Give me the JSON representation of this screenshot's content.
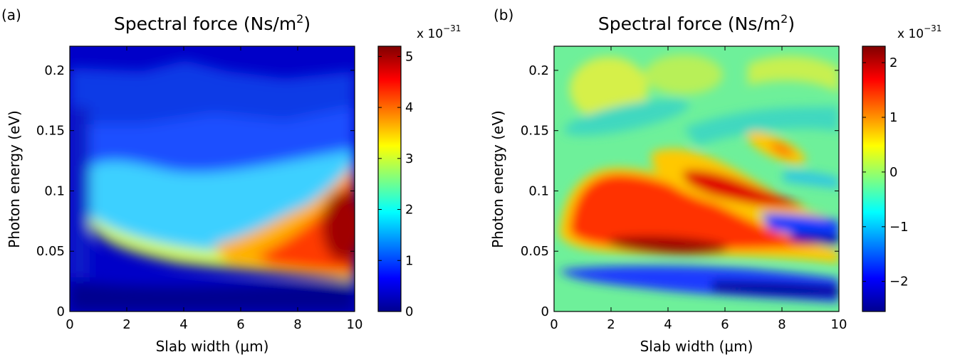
{
  "chart_data": [
    {
      "type": "heatmap",
      "panel_label": "(a)",
      "title": "Spectral force (Ns/m",
      "title_sup": "2",
      "title_tail": ")",
      "xlabel": "Slab width (μm)",
      "ylabel": "Photon energy (eV)",
      "xlim": [
        0,
        10
      ],
      "ylim": [
        0,
        0.22
      ],
      "x_ticks": [
        0,
        2,
        4,
        6,
        8,
        10
      ],
      "x_tick_labels": [
        "0",
        "2",
        "4",
        "6",
        "8",
        "10"
      ],
      "y_ticks": [
        0,
        0.05,
        0.1,
        0.15,
        0.2
      ],
      "y_tick_labels": [
        "0",
        "0.05",
        "0.1",
        "0.15",
        "0.2"
      ],
      "colorbar": {
        "range": [
          0,
          5.2
        ],
        "ticks": [
          0,
          1,
          2,
          3,
          4,
          5
        ],
        "tick_labels": [
          "0",
          "1",
          "2",
          "3",
          "4",
          "5"
        ],
        "exponent_base": "x 10",
        "exponent_power": "−31",
        "colormap": "jet"
      },
      "features": [
        {
          "description_value": "band ridge",
          "x_range": [
            0,
            10
          ],
          "y_center_start": 0.07,
          "y_center_end": 0.045,
          "value": 2.3
        },
        {
          "description_value": "peak",
          "x": 9.8,
          "y": 0.07,
          "value": 5.1
        },
        {
          "description_value": "shoulder",
          "x": 1.5,
          "y": 0.1,
          "value": 1.8
        }
      ]
    },
    {
      "type": "heatmap",
      "panel_label": "(b)",
      "title": "Spectral force (Ns/m",
      "title_sup": "2",
      "title_tail": ")",
      "xlabel": "Slab width (μm)",
      "ylabel": "Photon energy (eV)",
      "xlim": [
        0,
        10
      ],
      "ylim": [
        0,
        0.22
      ],
      "x_ticks": [
        0,
        2,
        4,
        6,
        8,
        10
      ],
      "x_tick_labels": [
        "0",
        "2",
        "4",
        "6",
        "8",
        "10"
      ],
      "y_ticks": [
        0,
        0.05,
        0.1,
        0.15,
        0.2
      ],
      "y_tick_labels": [
        "0",
        "0.05",
        "0.1",
        "0.15",
        "0.2"
      ],
      "colorbar": {
        "range": [
          -2.55,
          2.3
        ],
        "ticks": [
          -2,
          -1,
          0,
          1,
          2
        ],
        "tick_labels": [
          "−2",
          "−1",
          "0",
          "1",
          "2"
        ],
        "exponent_base": "x 10",
        "exponent_power": "−31",
        "colormap": "jet"
      },
      "features": [
        {
          "description_value": "main positive lobe",
          "x": 3.8,
          "y": 0.055,
          "value": 2.2
        },
        {
          "description_value": "second positive lobe",
          "x": 6.5,
          "y": 0.1,
          "value": 1.6
        },
        {
          "description_value": "third positive lobe",
          "x": 7.8,
          "y": 0.135,
          "value": 1.0
        },
        {
          "description_value": "negative band",
          "x": 9.5,
          "y": 0.02,
          "value": -2.5
        }
      ]
    }
  ]
}
